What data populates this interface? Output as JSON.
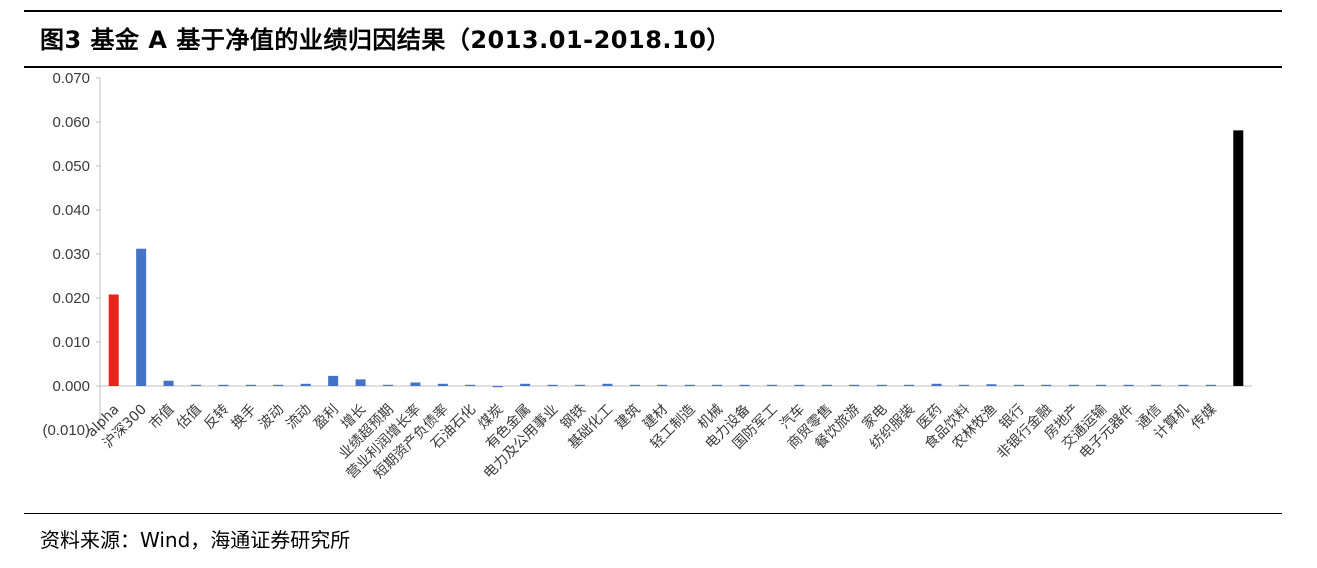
{
  "title": "图3  基金 A 基于净值的业绩归因结果（2013.01-2018.10）",
  "source": "资料来源：Wind，海通证券研究所",
  "colors": {
    "alpha": "#e8231c",
    "factor": "#4472c4",
    "total": "#000000",
    "axis": "#bfbfbf"
  },
  "chart_data": {
    "type": "bar",
    "ylim": [
      -0.01,
      0.07
    ],
    "yticks": [
      -0.01,
      0.0,
      0.01,
      0.02,
      0.03,
      0.04,
      0.05,
      0.06,
      0.07
    ],
    "ytick_labels": [
      "(0.010)",
      "0.000",
      "0.010",
      "0.020",
      "0.030",
      "0.040",
      "0.050",
      "0.060",
      "0.070"
    ],
    "categories": [
      "alpha",
      "沪深300",
      "市值",
      "估值",
      "反转",
      "换手",
      "波动",
      "流动",
      "盈利",
      "增长",
      "业绩超预期",
      "营业利润增长率",
      "短期资产负债率",
      "石油石化",
      "煤炭",
      "有色金属",
      "电力及公用事业",
      "钢铁",
      "基础化工",
      "建筑",
      "建材",
      "轻工制造",
      "机械",
      "电力设备",
      "国防军工",
      "汽车",
      "商贸零售",
      "餐饮旅游",
      "家电",
      "纺织服装",
      "医药",
      "食品饮料",
      "农林牧渔",
      "银行",
      "非银行金融",
      "房地产",
      "交通运输",
      "电子元器件",
      "通信",
      "计算机",
      "传媒",
      ""
    ],
    "values": [
      0.0208,
      0.0312,
      0.0012,
      0.0,
      0.0,
      0.0,
      0.0,
      0.0005,
      0.0023,
      0.0015,
      0.0001,
      0.0008,
      0.0005,
      0.0,
      -0.0001,
      0.0005,
      0.0001,
      0.0,
      0.0005,
      0.0001,
      0.0001,
      0.0,
      0.0,
      0.0,
      0.0001,
      0.0,
      0.0,
      0.0,
      0.0002,
      0.0,
      0.0005,
      0.0,
      0.0004,
      0.0001,
      0.0001,
      0.0001,
      0.0,
      0.0,
      0.0,
      0.0001,
      0.0001,
      0.0581
    ],
    "bar_colors": [
      "alpha",
      "factor",
      "factor",
      "factor",
      "factor",
      "factor",
      "factor",
      "factor",
      "factor",
      "factor",
      "factor",
      "factor",
      "factor",
      "factor",
      "factor",
      "factor",
      "factor",
      "factor",
      "factor",
      "factor",
      "factor",
      "factor",
      "factor",
      "factor",
      "factor",
      "factor",
      "factor",
      "factor",
      "factor",
      "factor",
      "factor",
      "factor",
      "factor",
      "factor",
      "factor",
      "factor",
      "factor",
      "factor",
      "factor",
      "factor",
      "factor",
      "total"
    ],
    "grid": false,
    "legend": "none"
  }
}
